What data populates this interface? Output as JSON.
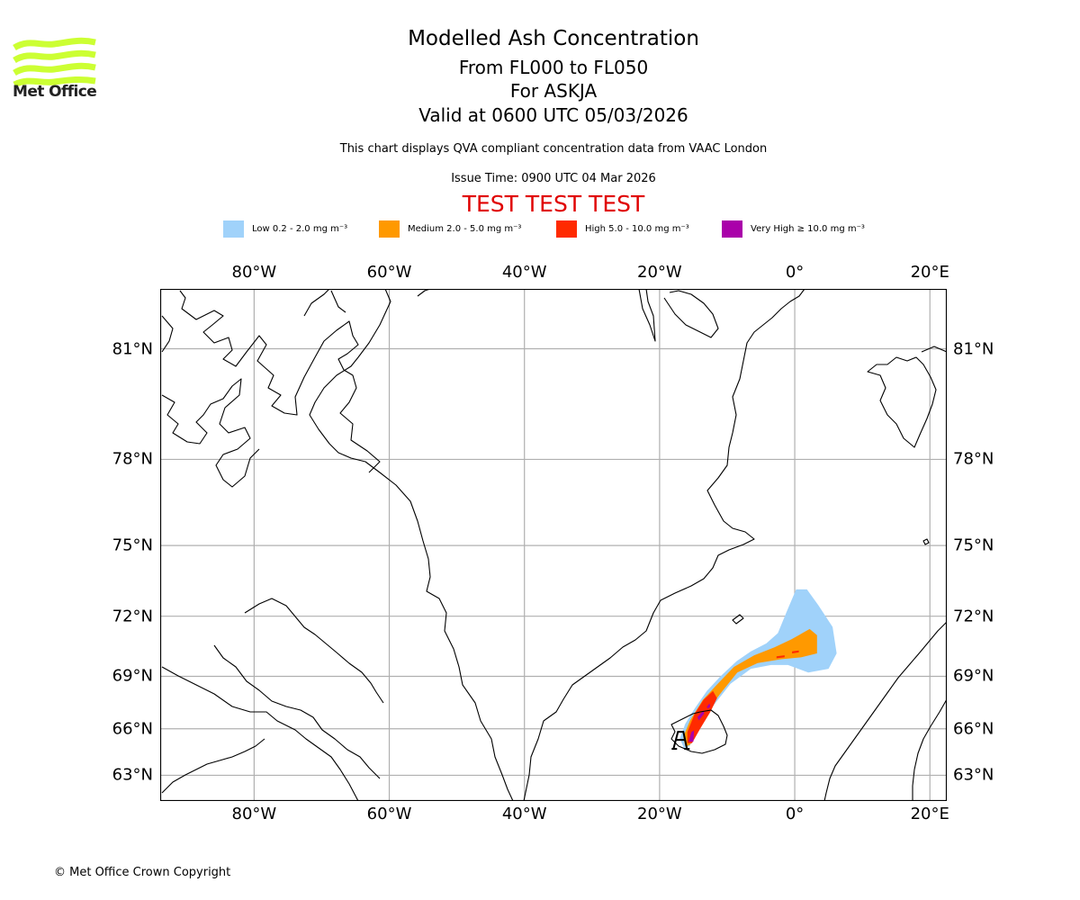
{
  "logo": {
    "text": "Met Office",
    "icon": "met-office-waves-logo",
    "color": "#ccff33"
  },
  "header": {
    "title": "Modelled Ash Concentration",
    "flight_levels": "From FL000 to FL050",
    "volcano": "For ASKJA",
    "valid_time": "Valid at 0600 UTC 05/03/2026",
    "disclaimer": "This chart displays QVA compliant concentration data from VAAC London",
    "issue_time": "Issue Time: 0900 UTC 04 Mar 2026",
    "test_banner": "TEST TEST TEST",
    "test_banner_color": "#e00000"
  },
  "legend": [
    {
      "label": "Low 0.2 - 2.0 mg m⁻³",
      "color": "#a0d2fa"
    },
    {
      "label": "Medium 2.0 - 5.0 mg m⁻³",
      "color": "#ff9900"
    },
    {
      "label": "High 5.0 - 10.0 mg m⁻³",
      "color": "#ff2a00"
    },
    {
      "label": "Very High ≥ 10.0 mg m⁻³",
      "color": "#aa00aa"
    }
  ],
  "map": {
    "projection": "mercator",
    "extent": {
      "lon_min": -93.9,
      "lon_max": 22.5,
      "lat_min": 61.2,
      "lat_max": 82.3
    },
    "lon_ticks": [
      {
        "value": -80,
        "label": "80°W"
      },
      {
        "value": -60,
        "label": "60°W"
      },
      {
        "value": -40,
        "label": "40°W"
      },
      {
        "value": -20,
        "label": "20°W"
      },
      {
        "value": 0,
        "label": "0°"
      },
      {
        "value": 20,
        "label": "20°E"
      }
    ],
    "lat_ticks": [
      {
        "value": 81,
        "label": "81°N"
      },
      {
        "value": 78,
        "label": "78°N"
      },
      {
        "value": 75,
        "label": "75°N"
      },
      {
        "value": 72,
        "label": "72°N"
      },
      {
        "value": 69,
        "label": "69°N"
      },
      {
        "value": 66,
        "label": "66°N"
      },
      {
        "value": 63,
        "label": "63°N"
      }
    ],
    "gridline_color": "#b0b0b0",
    "coastline_color": "#000000",
    "volcano_location": {
      "name": "ASKJA",
      "lon": -16.75,
      "lat": 65.03
    },
    "ash_plume": {
      "low": [
        [
          -16.4,
          64.8
        ],
        [
          -17.0,
          65.4
        ],
        [
          -16.2,
          66.3
        ],
        [
          -14.8,
          67.2
        ],
        [
          -13.0,
          68.2
        ],
        [
          -11.0,
          69.0
        ],
        [
          -8.6,
          69.8
        ],
        [
          -6.5,
          70.3
        ],
        [
          -4.2,
          70.7
        ],
        [
          -2.5,
          71.2
        ],
        [
          -1.2,
          72.2
        ],
        [
          0.2,
          73.2
        ],
        [
          1.8,
          73.2
        ],
        [
          3.5,
          72.5
        ],
        [
          5.6,
          71.5
        ],
        [
          6.2,
          70.2
        ],
        [
          5.0,
          69.4
        ],
        [
          2.0,
          69.2
        ],
        [
          -1.0,
          69.6
        ],
        [
          -3.5,
          69.6
        ],
        [
          -6.5,
          69.4
        ],
        [
          -9.5,
          68.6
        ],
        [
          -12.0,
          67.4
        ],
        [
          -14.0,
          66.0
        ],
        [
          -15.6,
          64.9
        ]
      ],
      "medium": [
        [
          -16.2,
          64.9
        ],
        [
          -16.5,
          65.5
        ],
        [
          -15.5,
          66.5
        ],
        [
          -13.6,
          67.7
        ],
        [
          -11.4,
          68.6
        ],
        [
          -9.0,
          69.5
        ],
        [
          -6.0,
          70.1
        ],
        [
          -3.0,
          70.5
        ],
        [
          -0.5,
          70.9
        ],
        [
          2.2,
          71.4
        ],
        [
          3.3,
          71.1
        ],
        [
          3.3,
          70.2
        ],
        [
          1.0,
          70.0
        ],
        [
          -2.0,
          69.9
        ],
        [
          -5.5,
          69.7
        ],
        [
          -8.5,
          69.2
        ],
        [
          -10.7,
          68.2
        ],
        [
          -12.5,
          67.3
        ],
        [
          -14.4,
          66.0
        ],
        [
          -15.5,
          65.0
        ]
      ],
      "high": [
        [
          -15.9,
          65.1
        ],
        [
          -15.9,
          65.8
        ],
        [
          -14.8,
          66.9
        ],
        [
          -13.5,
          67.7
        ],
        [
          -12.1,
          68.2
        ],
        [
          -11.5,
          67.8
        ],
        [
          -12.5,
          67.0
        ],
        [
          -14.0,
          66.0
        ],
        [
          -15.2,
          65.1
        ]
      ],
      "high_spots": [
        [
          [
            -2.7,
            70.05
          ],
          [
            -1.5,
            70.1
          ],
          [
            -1.5,
            70.0
          ],
          [
            -2.7,
            69.95
          ]
        ],
        [
          [
            -0.4,
            70.3
          ],
          [
            0.6,
            70.35
          ],
          [
            0.6,
            70.25
          ],
          [
            -0.4,
            70.2
          ]
        ]
      ],
      "very_high": [
        [
          [
            -15.7,
            65.2
          ],
          [
            -15.3,
            65.8
          ],
          [
            -14.9,
            65.9
          ],
          [
            -15.0,
            65.2
          ]
        ],
        [
          [
            -14.4,
            66.7
          ],
          [
            -13.5,
            67.1
          ],
          [
            -13.4,
            66.9
          ],
          [
            -14.2,
            66.5
          ]
        ],
        [
          [
            -13.0,
            67.3
          ],
          [
            -12.6,
            67.5
          ],
          [
            -12.5,
            67.3
          ],
          [
            -12.9,
            67.2
          ]
        ]
      ]
    }
  },
  "footer": {
    "copyright": "© Met Office Crown Copyright"
  }
}
